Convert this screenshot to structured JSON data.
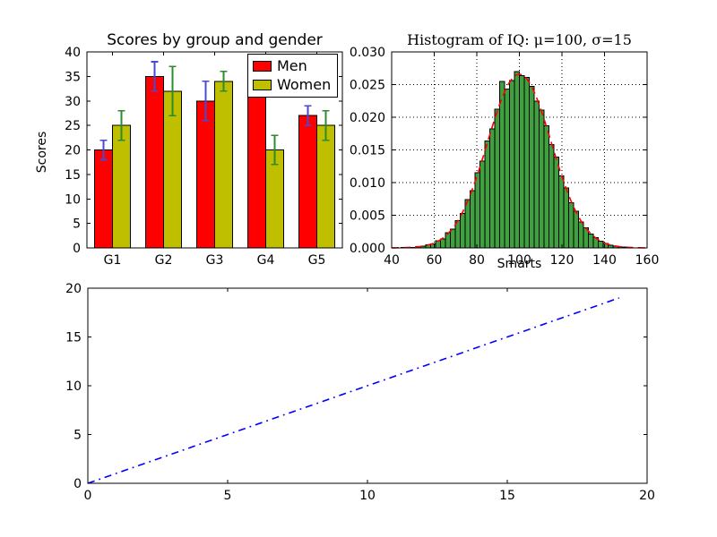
{
  "figure": {
    "background": "#ffffff"
  },
  "chart_data": [
    {
      "id": "scores_by_group",
      "type": "bar",
      "title": "Scores by group and gender",
      "ylabel": "Scores",
      "categories": [
        "G1",
        "G2",
        "G3",
        "G4",
        "G5"
      ],
      "series": [
        {
          "name": "Men",
          "color": "#ff0000",
          "edge_color": "#000000",
          "values": [
            20,
            35,
            30,
            35,
            27
          ],
          "errors": [
            2,
            3,
            4,
            1,
            2
          ],
          "error_color": "#4a4ad0"
        },
        {
          "name": "Women",
          "color": "#bfbf00",
          "edge_color": "#000000",
          "values": [
            25,
            32,
            34,
            20,
            25
          ],
          "errors": [
            3,
            5,
            2,
            3,
            3
          ],
          "error_color": "#2d8b2d"
        }
      ],
      "bar_width": 0.35,
      "xlim": [
        -0.15,
        4.85
      ],
      "ylim": [
        0,
        40
      ],
      "yticks": [
        0,
        5,
        10,
        15,
        20,
        25,
        30,
        35,
        40
      ],
      "ytick_labels": [
        "0",
        "5",
        "10",
        "15",
        "20",
        "25",
        "30",
        "35",
        "40"
      ],
      "grid": false,
      "legend_position": "upper right"
    },
    {
      "id": "iq_histogram",
      "type": "histogram",
      "title": "Histogram of IQ: μ=100, σ=15",
      "xlabel": "Smarts",
      "bar_color": "#40a040",
      "bar_edge_color": "#000000",
      "bin_start": 42,
      "bin_width": 2.32,
      "bin_heights": [
        2e-05,
        5e-05,
        8e-05,
        0.0001,
        0.0002,
        0.00024,
        0.0005,
        0.00063,
        0.0011,
        0.0014,
        0.0023,
        0.0029,
        0.0042,
        0.0053,
        0.0074,
        0.0088,
        0.0115,
        0.0133,
        0.0164,
        0.0182,
        0.0212,
        0.0255,
        0.0243,
        0.0256,
        0.027,
        0.0264,
        0.0261,
        0.0247,
        0.0225,
        0.0211,
        0.0187,
        0.0158,
        0.0139,
        0.011,
        0.0092,
        0.0069,
        0.0056,
        0.004,
        0.0031,
        0.0021,
        0.00155,
        0.001,
        0.0007,
        0.00042,
        0.0003,
        0.00016,
        0.00012,
        6e-05,
        4e-05,
        2e-05
      ],
      "curve": {
        "type": "normal-pdf",
        "mu": 100,
        "sigma": 15,
        "peak": 0.02659,
        "color": "#ff0000",
        "style": "dashed"
      },
      "xlim": [
        40,
        160
      ],
      "ylim": [
        0,
        0.03
      ],
      "xticks": [
        40,
        60,
        80,
        100,
        120,
        140,
        160
      ],
      "xtick_labels": [
        "40",
        "60",
        "80",
        "100",
        "120",
        "140",
        "160"
      ],
      "yticks": [
        0,
        0.005,
        0.01,
        0.015,
        0.02,
        0.025,
        0.03
      ],
      "ytick_labels": [
        "0.000",
        "0.005",
        "0.010",
        "0.015",
        "0.020",
        "0.025",
        "0.030"
      ],
      "grid": true
    },
    {
      "id": "diagonal_line",
      "type": "line",
      "x": [
        0,
        19
      ],
      "y": [
        0,
        19
      ],
      "line_color": "#0000ff",
      "line_style": "dash-dot",
      "xlim": [
        0,
        20
      ],
      "ylim": [
        0,
        20
      ],
      "xticks": [
        0,
        5,
        10,
        15,
        20
      ],
      "xtick_labels": [
        "0",
        "5",
        "10",
        "15",
        "20"
      ],
      "yticks": [
        0,
        5,
        10,
        15,
        20
      ],
      "ytick_labels": [
        "0",
        "5",
        "10",
        "15",
        "20"
      ],
      "grid": false
    }
  ]
}
